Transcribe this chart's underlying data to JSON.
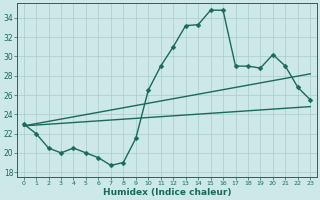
{
  "xlabel": "Humidex (Indice chaleur)",
  "bg_color": "#cce8e8",
  "grid_color": "#aacccc",
  "line_color": "#1a6a5a",
  "xlim": [
    -0.5,
    23.5
  ],
  "ylim": [
    17.5,
    35.5
  ],
  "yticks": [
    18,
    20,
    22,
    24,
    26,
    28,
    30,
    32,
    34
  ],
  "xticks": [
    0,
    1,
    2,
    3,
    4,
    5,
    6,
    7,
    8,
    9,
    10,
    11,
    12,
    13,
    14,
    15,
    16,
    17,
    18,
    19,
    20,
    21,
    22,
    23
  ],
  "line1_x": [
    0,
    1,
    2,
    3,
    4,
    5,
    6,
    7,
    8,
    9,
    10,
    11,
    12,
    13,
    14,
    15,
    16,
    17,
    18,
    19,
    20,
    21,
    22,
    23
  ],
  "line1_y": [
    23.0,
    22.0,
    20.5,
    20.0,
    20.5,
    20.0,
    19.5,
    18.7,
    19.0,
    21.5,
    26.5,
    29.0,
    31.0,
    33.2,
    33.3,
    34.8,
    34.8,
    29.0,
    29.0,
    28.8,
    30.2,
    29.0,
    26.8,
    25.5
  ],
  "line2_x": [
    0,
    23
  ],
  "line2_y": [
    22.8,
    24.8
  ],
  "line3_x": [
    0,
    23
  ],
  "line3_y": [
    22.8,
    28.2
  ],
  "marker_size": 2.5,
  "linewidth": 1.0
}
